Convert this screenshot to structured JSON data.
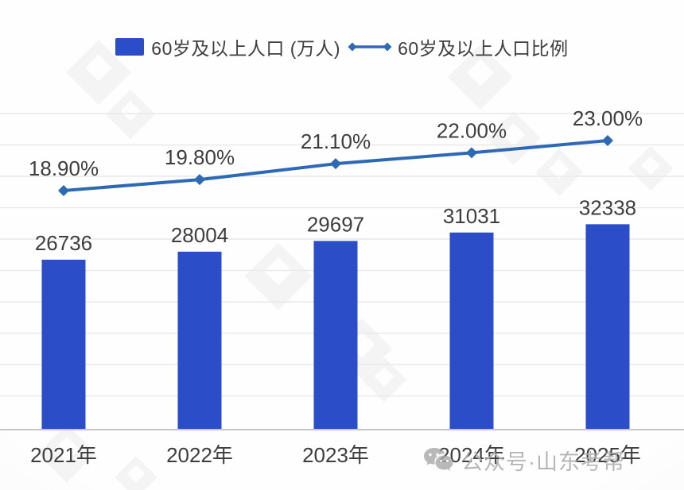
{
  "legend": {
    "bar_label": "60岁及以上人口 (万人)",
    "line_label": "60岁及以上人口比例"
  },
  "chart_data": {
    "type": "bar",
    "subtype": "bar-line-combo",
    "categories": [
      "2021年",
      "2022年",
      "2023年",
      "2024年",
      "2025年"
    ],
    "series": [
      {
        "name": "60岁及以上人口 (万人)",
        "type": "bar",
        "values": [
          26736,
          28004,
          29697,
          31031,
          32338
        ],
        "labels": [
          "26736",
          "28004",
          "29697",
          "31031",
          "32338"
        ],
        "color": "#2B4DC8"
      },
      {
        "name": "60岁及以上人口比例",
        "type": "line",
        "values": [
          18.9,
          19.8,
          21.1,
          22.0,
          23.0
        ],
        "labels": [
          "18.90%",
          "19.80%",
          "21.10%",
          "22.00%",
          "23.00%"
        ],
        "color": "#2D69B4",
        "marker": "diamond"
      }
    ],
    "title": "",
    "xlabel": "",
    "ylabel": "",
    "grid": true,
    "legend_position": "top",
    "data_labels_visible": true,
    "y_axis_ticks_visible": false
  },
  "watermark": {
    "wechat_label": "公众号·山东考帮"
  },
  "colors": {
    "bar": "#2B4DC8",
    "line": "#2D69B4",
    "label_text": "#3d3d3d",
    "gridline": "#e9e9e9",
    "axis": "#c6c6c6",
    "watermark_gray": "#b3b3b3"
  }
}
